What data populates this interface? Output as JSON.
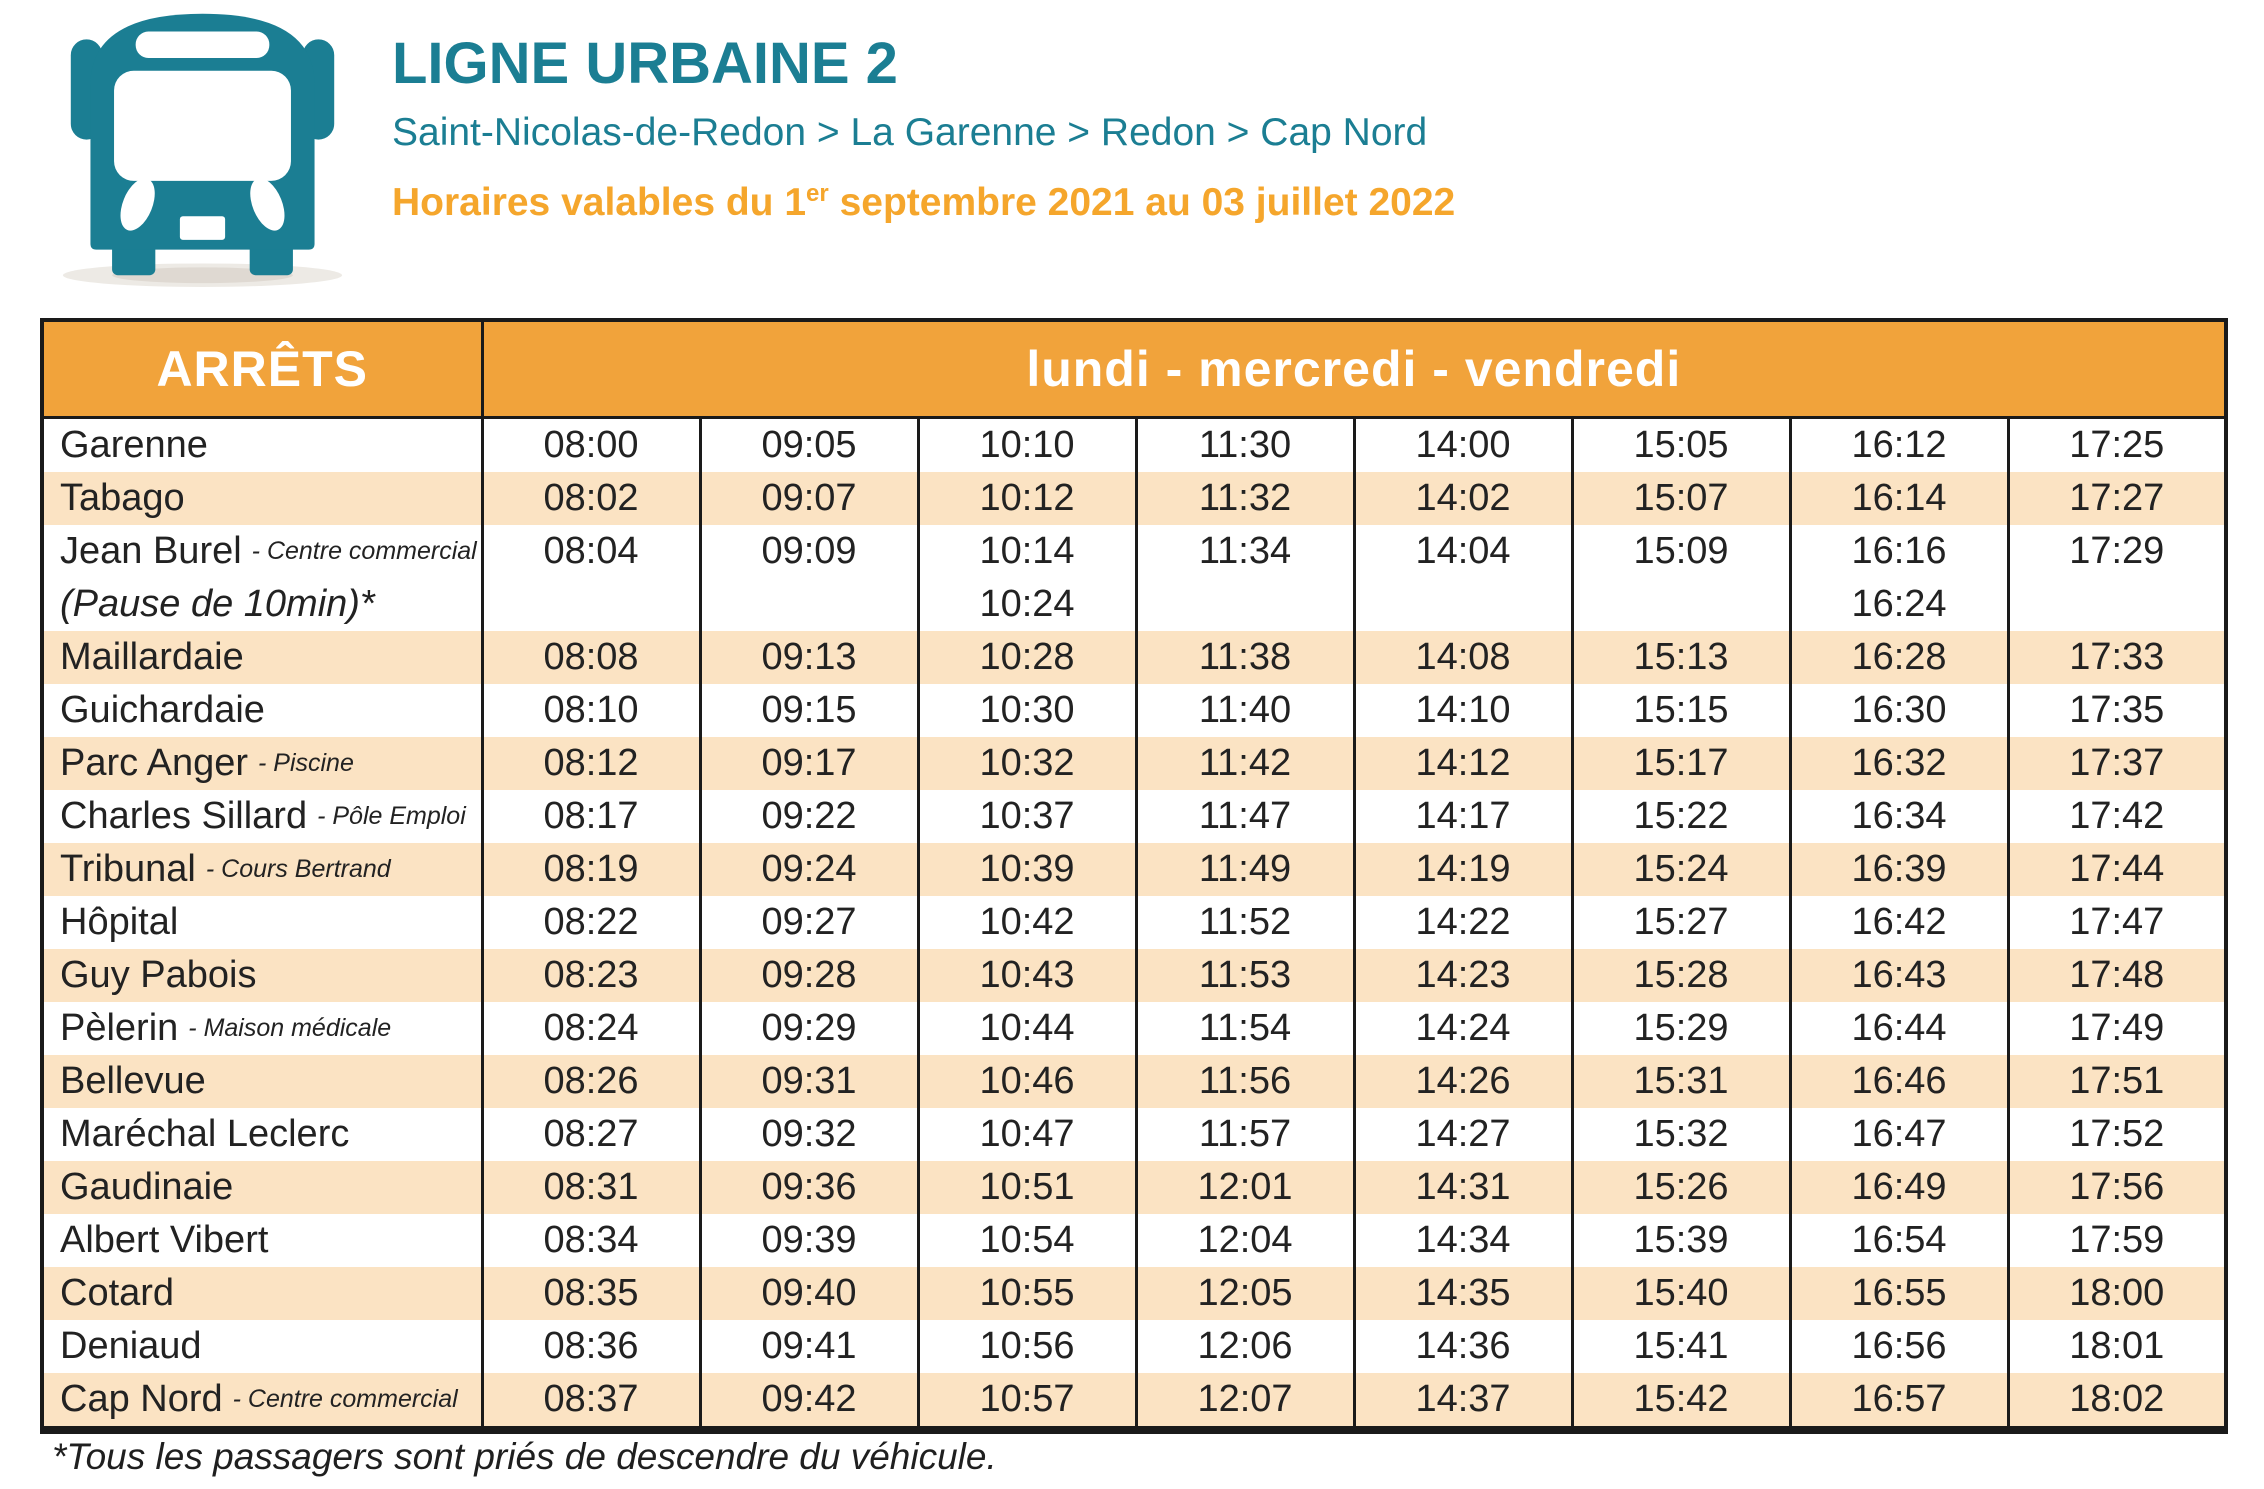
{
  "header": {
    "title": "LIGNE URBAINE 2",
    "route": "Saint-Nicolas-de-Redon > La Garenne > Redon > Cap Nord",
    "validity_prefix": "Horaires valables du 1",
    "validity_sup": "er",
    "validity_suffix": " septembre 2021 au 03 juillet 2022",
    "bus_icon": "bus-icon"
  },
  "colors": {
    "teal": "#1B7E93",
    "header_orange": "#F1A33B",
    "validity_orange": "#F5A62C",
    "row_peach": "#FBE3C3",
    "border_black": "#1A1A1A"
  },
  "table": {
    "col_header_stops": "ARRÊTS",
    "col_header_days": "lundi - mercredi - vendredi",
    "rows": [
      {
        "stop": "Garenne",
        "note": "",
        "shade": false,
        "times": [
          "08:00",
          "09:05",
          "10:10",
          "11:30",
          "14:00",
          "15:05",
          "16:12",
          "17:25"
        ]
      },
      {
        "stop": "Tabago",
        "note": "",
        "shade": true,
        "times": [
          "08:02",
          "09:07",
          "10:12",
          "11:32",
          "14:02",
          "15:07",
          "16:14",
          "17:27"
        ]
      },
      {
        "stop": "Jean Burel",
        "note": "- Centre commercial",
        "stop2": "(Pause de 10min)*",
        "shade": false,
        "times": [
          "08:04",
          "09:09",
          "10:14",
          "11:34",
          "14:04",
          "15:09",
          "16:16",
          "17:29"
        ],
        "times2": [
          "",
          "",
          "10:24",
          "",
          "",
          "",
          "16:24",
          ""
        ]
      },
      {
        "stop": "Maillardaie",
        "note": "",
        "shade": true,
        "times": [
          "08:08",
          "09:13",
          "10:28",
          "11:38",
          "14:08",
          "15:13",
          "16:28",
          "17:33"
        ]
      },
      {
        "stop": "Guichardaie",
        "note": "",
        "shade": false,
        "times": [
          "08:10",
          "09:15",
          "10:30",
          "11:40",
          "14:10",
          "15:15",
          "16:30",
          "17:35"
        ]
      },
      {
        "stop": "Parc Anger",
        "note": "- Piscine",
        "shade": true,
        "times": [
          "08:12",
          "09:17",
          "10:32",
          "11:42",
          "14:12",
          "15:17",
          "16:32",
          "17:37"
        ]
      },
      {
        "stop": "Charles Sillard",
        "note": "- Pôle Emploi",
        "shade": false,
        "times": [
          "08:17",
          "09:22",
          "10:37",
          "11:47",
          "14:17",
          "15:22",
          "16:34",
          "17:42"
        ]
      },
      {
        "stop": "Tribunal",
        "note": "- Cours Bertrand",
        "shade": true,
        "times": [
          "08:19",
          "09:24",
          "10:39",
          "11:49",
          "14:19",
          "15:24",
          "16:39",
          "17:44"
        ]
      },
      {
        "stop": "Hôpital",
        "note": "",
        "shade": false,
        "times": [
          "08:22",
          "09:27",
          "10:42",
          "11:52",
          "14:22",
          "15:27",
          "16:42",
          "17:47"
        ]
      },
      {
        "stop": "Guy Pabois",
        "note": "",
        "shade": true,
        "times": [
          "08:23",
          "09:28",
          "10:43",
          "11:53",
          "14:23",
          "15:28",
          "16:43",
          "17:48"
        ]
      },
      {
        "stop": "Pèlerin",
        "note": "- Maison médicale",
        "shade": false,
        "times": [
          "08:24",
          "09:29",
          "10:44",
          "11:54",
          "14:24",
          "15:29",
          "16:44",
          "17:49"
        ]
      },
      {
        "stop": "Bellevue",
        "note": "",
        "shade": true,
        "times": [
          "08:26",
          "09:31",
          "10:46",
          "11:56",
          "14:26",
          "15:31",
          "16:46",
          "17:51"
        ]
      },
      {
        "stop": "Maréchal Leclerc",
        "note": "",
        "shade": false,
        "times": [
          "08:27",
          "09:32",
          "10:47",
          "11:57",
          "14:27",
          "15:32",
          "16:47",
          "17:52"
        ]
      },
      {
        "stop": "Gaudinaie",
        "note": "",
        "shade": true,
        "times": [
          "08:31",
          "09:36",
          "10:51",
          "12:01",
          "14:31",
          "15:26",
          "16:49",
          "17:56"
        ]
      },
      {
        "stop": "Albert Vibert",
        "note": "",
        "shade": false,
        "times": [
          "08:34",
          "09:39",
          "10:54",
          "12:04",
          "14:34",
          "15:39",
          "16:54",
          "17:59"
        ]
      },
      {
        "stop": "Cotard",
        "note": "",
        "shade": true,
        "times": [
          "08:35",
          "09:40",
          "10:55",
          "12:05",
          "14:35",
          "15:40",
          "16:55",
          "18:00"
        ]
      },
      {
        "stop": "Deniaud",
        "note": "",
        "shade": false,
        "times": [
          "08:36",
          "09:41",
          "10:56",
          "12:06",
          "14:36",
          "15:41",
          "16:56",
          "18:01"
        ]
      },
      {
        "stop": "Cap Nord",
        "note": "- Centre commercial",
        "shade": true,
        "times": [
          "08:37",
          "09:42",
          "10:57",
          "12:07",
          "14:37",
          "15:42",
          "16:57",
          "18:02"
        ]
      }
    ]
  },
  "footnote": "*Tous les passagers sont priés de descendre du véhicule."
}
